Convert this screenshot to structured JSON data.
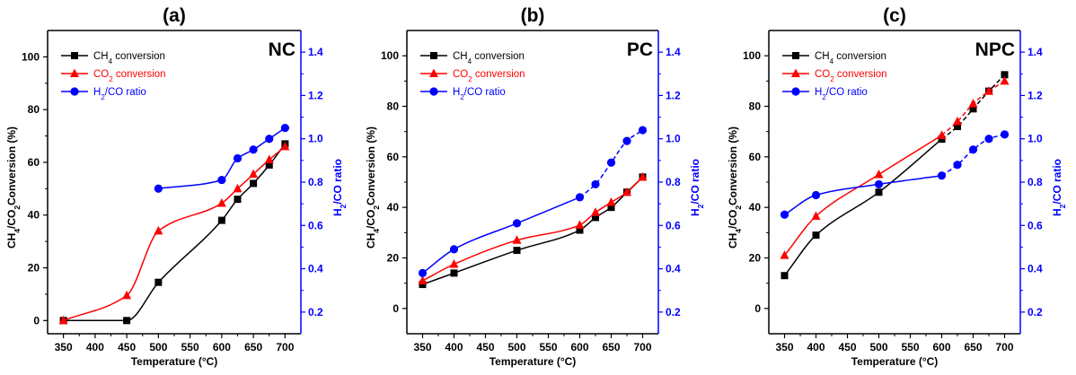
{
  "colors": {
    "ch4": "#000000",
    "co2": "#ff0000",
    "h2co": "#0000ff"
  },
  "chart_data": [
    {
      "type": "line",
      "title": "(a)",
      "label": "NC",
      "xlabel": "Temperature (°C)",
      "ylabel": [
        "CH",
        "4",
        "/CO",
        "2",
        "Conversion (%)"
      ],
      "y2label": [
        "H",
        "2",
        "/CO ratio"
      ],
      "xlim": [
        325,
        725
      ],
      "ylim": [
        -5,
        110
      ],
      "y2lim": [
        0.1,
        1.5
      ],
      "xticks": [
        350,
        400,
        450,
        500,
        550,
        600,
        650,
        700
      ],
      "yticks": [
        0,
        20,
        40,
        60,
        80,
        100
      ],
      "y2ticks": [
        0.2,
        0.4,
        0.6,
        0.8,
        1.0,
        1.2,
        1.4
      ],
      "legend_position": "top-left",
      "series": [
        {
          "name": [
            "CH",
            "4",
            " conversion"
          ],
          "axis": "left",
          "marker": "square",
          "style": "solid",
          "x": [
            350,
            450,
            500,
            600,
            625,
            650,
            675,
            700
          ],
          "values": [
            0,
            0,
            14.5,
            38,
            46,
            52,
            59,
            67
          ]
        },
        {
          "name": [
            "CO",
            "2",
            " conversion"
          ],
          "axis": "left",
          "marker": "triangle",
          "style": "solid",
          "x": [
            350,
            450,
            500,
            600,
            625,
            650,
            675,
            700
          ],
          "values": [
            0,
            9.5,
            34,
            44.5,
            50,
            55.5,
            61,
            66
          ]
        },
        {
          "name": [
            "H",
            "2",
            "/CO ratio"
          ],
          "axis": "right",
          "marker": "circle",
          "style": "solid",
          "x": [
            500,
            600,
            625,
            650,
            675,
            700
          ],
          "values": [
            0.77,
            0.81,
            0.91,
            0.95,
            1.0,
            1.05
          ]
        }
      ]
    },
    {
      "type": "line",
      "title": "(b)",
      "label": "PC",
      "xlabel": "Temperature (°C)",
      "ylabel": [
        "CH",
        "4",
        "/CO",
        "2",
        "Conversion (%)"
      ],
      "y2label": [
        "H",
        "2",
        "/CO ratio"
      ],
      "xlim": [
        325,
        725
      ],
      "ylim": [
        -10,
        110
      ],
      "y2lim": [
        0.1,
        1.5
      ],
      "xticks": [
        350,
        400,
        450,
        500,
        550,
        600,
        650,
        700
      ],
      "yticks": [
        0,
        20,
        40,
        60,
        80,
        100
      ],
      "y2ticks": [
        0.2,
        0.4,
        0.6,
        0.8,
        1.0,
        1.2,
        1.4
      ],
      "legend_position": "top-left",
      "series": [
        {
          "name": [
            "CH",
            "4",
            " conversion"
          ],
          "axis": "left",
          "marker": "square",
          "style": "solid",
          "x": [
            350,
            400,
            500,
            600,
            625,
            650,
            675,
            700
          ],
          "values": [
            9.5,
            14,
            23,
            31,
            36,
            40,
            46,
            52
          ]
        },
        {
          "name": [
            "CO",
            "2",
            " conversion"
          ],
          "axis": "left",
          "marker": "triangle",
          "style": "solid",
          "x": [
            350,
            400,
            500,
            600,
            625,
            650,
            675,
            700
          ],
          "values": [
            11,
            17.5,
            27,
            33,
            38,
            42,
            46,
            52
          ]
        },
        {
          "name": [
            "H",
            "2",
            "/CO ratio"
          ],
          "axis": "right",
          "marker": "circle",
          "style": "dashed-right",
          "x": [
            350,
            400,
            500,
            600,
            625,
            650,
            675,
            700
          ],
          "values": [
            0.38,
            0.49,
            0.61,
            0.73,
            0.79,
            0.89,
            0.99,
            1.04
          ]
        }
      ]
    },
    {
      "type": "line",
      "title": "(c)",
      "label": "NPC",
      "xlabel": "Temperature (°C)",
      "ylabel": [
        "CH",
        "4",
        "/CO",
        "2",
        "Conversion (%)"
      ],
      "y2label": [
        "H",
        "2",
        "/CO ratio"
      ],
      "xlim": [
        325,
        725
      ],
      "ylim": [
        -10,
        110
      ],
      "y2lim": [
        0.1,
        1.5
      ],
      "xticks": [
        350,
        400,
        450,
        500,
        550,
        600,
        650,
        700
      ],
      "yticks": [
        0,
        20,
        40,
        60,
        80,
        100
      ],
      "y2ticks": [
        0.2,
        0.4,
        0.6,
        0.8,
        1.0,
        1.2,
        1.4
      ],
      "legend_position": "top-left",
      "series": [
        {
          "name": [
            "CH",
            "4",
            " conversion"
          ],
          "axis": "left",
          "marker": "square",
          "style": "dashed-right",
          "x": [
            350,
            400,
            500,
            600,
            625,
            650,
            675,
            700
          ],
          "values": [
            13,
            29,
            46,
            67,
            72,
            79,
            86,
            92.5
          ]
        },
        {
          "name": [
            "CO",
            "2",
            " conversion"
          ],
          "axis": "left",
          "marker": "triangle",
          "style": "dashed-right",
          "x": [
            350,
            400,
            500,
            600,
            625,
            650,
            675,
            700
          ],
          "values": [
            21,
            36.5,
            53,
            68.5,
            74,
            81,
            86,
            90
          ]
        },
        {
          "name": [
            "H",
            "2",
            "/CO ratio"
          ],
          "axis": "right",
          "marker": "circle",
          "style": "dashed-right",
          "x": [
            350,
            400,
            500,
            600,
            625,
            650,
            675,
            700
          ],
          "values": [
            0.65,
            0.74,
            0.79,
            0.83,
            0.88,
            0.95,
            1.0,
            1.02
          ]
        }
      ]
    }
  ]
}
